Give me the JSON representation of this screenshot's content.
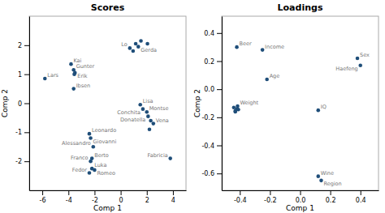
{
  "chart_data": [
    {
      "type": "scatter",
      "title": "Scores",
      "x_label": "Comp 1",
      "y_label": "Comp 2",
      "color": "#1f4e79",
      "xlim": [
        -7,
        5
      ],
      "ylim": [
        -3,
        3
      ],
      "xticks": [
        -6,
        -4,
        -2,
        0,
        2,
        4
      ],
      "yticks": [
        -2,
        -1,
        0,
        1,
        2
      ],
      "x": [
        -5.8,
        -3.8,
        -3.6,
        -3.5,
        -3.55,
        -3.6,
        -2.4,
        -2.3,
        -2.1,
        -2.2,
        -2.3,
        -2.2,
        -2.4,
        -2.0,
        0.7,
        0.95,
        1.15,
        1.35,
        1.55,
        2.05,
        1.5,
        1.7,
        2.0,
        2.1,
        2.3,
        2.5,
        2.2,
        3.8
      ],
      "values": [
        0.85,
        1.35,
        1.15,
        1.05,
        1.0,
        0.5,
        -1.05,
        -1.2,
        -1.5,
        -1.9,
        -2.0,
        -2.25,
        -2.4,
        -2.3,
        1.9,
        1.8,
        2.05,
        1.95,
        2.15,
        2.05,
        -0.05,
        -0.2,
        -0.3,
        -0.45,
        -0.6,
        -0.7,
        -0.9,
        -1.9
      ],
      "labels": [
        "Lars",
        "Kai",
        "Gunter",
        "Erik",
        null,
        "Ibsen",
        "Leonardo",
        "Giovanni",
        "Alessandro",
        "Berto",
        "Franco",
        "Luka",
        "Fedor",
        "Romeo",
        "Lo",
        null,
        null,
        "Gerda",
        null,
        null,
        "Lisa",
        "Conchita",
        "Montse",
        "Donatella",
        null,
        "Vena",
        null,
        "Fabricia"
      ]
    },
    {
      "type": "scatter",
      "title": "Loadings",
      "x_label": "Comp 1",
      "y_label": "Comp 2",
      "color": "#1f4e79",
      "xlim": [
        -0.52,
        0.52
      ],
      "ylim": [
        -0.72,
        0.52
      ],
      "xticks": [
        -0.4,
        -0.2,
        {
          "value": 0.0,
          "label": "0.0"
        },
        0.2,
        0.4
      ],
      "yticks": [
        -0.6,
        -0.4,
        -0.2,
        {
          "value": 0.0,
          "label": "0.0"
        },
        0.2,
        0.4
      ],
      "x": [
        -0.42,
        -0.25,
        -0.22,
        -0.415,
        -0.42,
        -0.43,
        -0.41,
        -0.44,
        -0.43,
        0.12,
        0.38,
        0.4,
        0.12,
        0.14
      ],
      "values": [
        0.3,
        0.28,
        0.07,
        -0.12,
        -0.14,
        -0.155,
        -0.145,
        -0.13,
        -0.16,
        -0.15,
        0.22,
        0.17,
        -0.62,
        -0.65
      ],
      "labels": [
        "Beer",
        "Income",
        "Age",
        "Weight",
        null,
        null,
        null,
        null,
        null,
        "IQ",
        "Sex",
        "Haefeng",
        "Wine",
        "Region"
      ]
    }
  ]
}
